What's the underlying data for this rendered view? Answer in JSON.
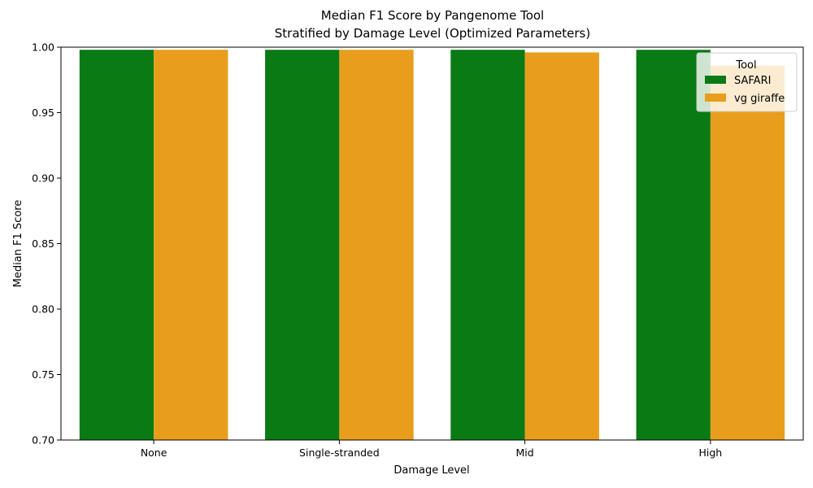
{
  "chart_data": {
    "type": "bar",
    "title": "Median F1 Score by Pangenome Tool",
    "subtitle": "Stratified by Damage Level (Optimized Parameters)",
    "xlabel": "Damage Level",
    "ylabel": "Median F1 Score",
    "categories": [
      "None",
      "Single-stranded",
      "Mid",
      "High"
    ],
    "series": [
      {
        "name": "SAFARI",
        "color": "#0a7a14",
        "values": [
          0.998,
          0.998,
          0.998,
          0.998
        ]
      },
      {
        "name": "vg giraffe",
        "color": "#e89e1c",
        "values": [
          0.998,
          0.998,
          0.996,
          0.986
        ]
      }
    ],
    "ylim": [
      0.7,
      1.0
    ],
    "yticks": [
      "0.70",
      "0.75",
      "0.80",
      "0.85",
      "0.90",
      "0.95",
      "1.00"
    ],
    "grid": false,
    "legend": {
      "title": "Tool",
      "placement": "top-right"
    }
  }
}
